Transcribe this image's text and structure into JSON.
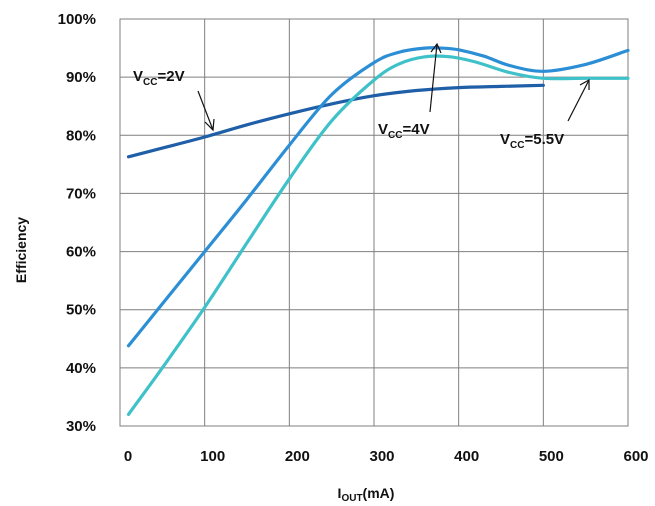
{
  "chart_data": {
    "type": "line",
    "xlabel": {
      "main": "I",
      "sub": "OUT",
      "suffix": "(mA)"
    },
    "ylabel": "Efficiency",
    "xlim": [
      0,
      600
    ],
    "ylim": [
      30,
      100
    ],
    "xticks": [
      0,
      100,
      200,
      300,
      400,
      500,
      600
    ],
    "yticks": [
      30,
      40,
      50,
      60,
      70,
      80,
      90,
      100
    ],
    "ytick_suffix": "%",
    "grid": true,
    "legend": "none",
    "series": [
      {
        "name": "VCC=2V",
        "color": "#1f5fa8",
        "x": [
          10,
          50,
          100,
          150,
          200,
          250,
          300,
          350,
          400,
          450,
          500
        ],
        "y": [
          76.3,
          77.8,
          79.7,
          81.8,
          83.7,
          85.4,
          86.8,
          87.7,
          88.2,
          88.4,
          88.6
        ]
      },
      {
        "name": "VCC=4V",
        "color": "#2c8fd6",
        "x": [
          10,
          50,
          100,
          150,
          200,
          250,
          300,
          330,
          360,
          380,
          400,
          430,
          460,
          500,
          550,
          600
        ],
        "y": [
          43.8,
          51.0,
          60.0,
          69.0,
          78.3,
          87.0,
          92.5,
          94.3,
          95.0,
          95.0,
          94.7,
          93.6,
          92.0,
          91.0,
          92.2,
          94.6
        ]
      },
      {
        "name": "VCC=5.5V",
        "color": "#3fc1c9",
        "x": [
          10,
          50,
          100,
          150,
          200,
          250,
          300,
          330,
          360,
          390,
          420,
          460,
          500,
          550,
          600
        ],
        "y": [
          32.0,
          40.0,
          50.4,
          61.5,
          72.5,
          82.5,
          89.5,
          92.3,
          93.5,
          93.5,
          92.6,
          90.8,
          89.8,
          89.8,
          89.8
        ]
      }
    ],
    "annotations": [
      {
        "main": "V",
        "sub": "CC",
        "suffix": "=2V"
      },
      {
        "main": "V",
        "sub": "CC",
        "suffix": "=4V"
      },
      {
        "main": "V",
        "sub": "CC",
        "suffix": "=5.5V"
      }
    ]
  }
}
